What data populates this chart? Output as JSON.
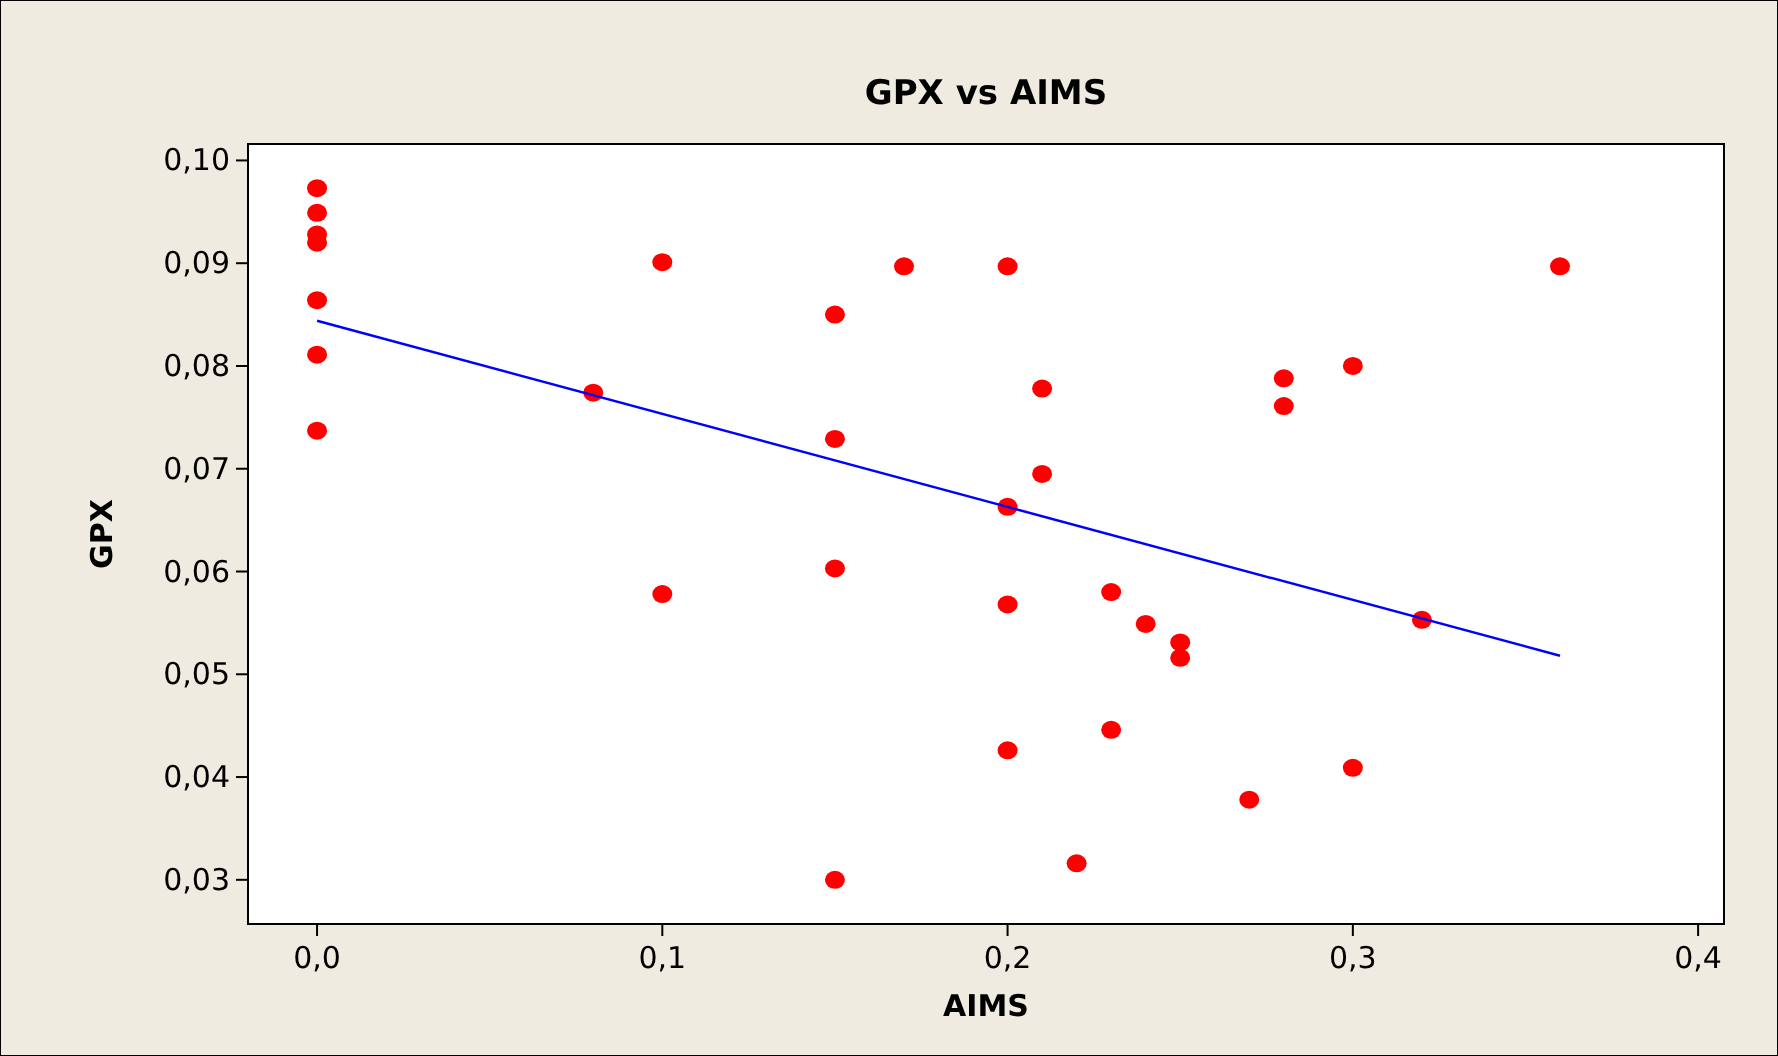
{
  "chart_data": {
    "type": "scatter",
    "title": "GPX vs AIMS",
    "xlabel": "AIMS",
    "ylabel": "GPX",
    "xlim": [
      -0.02,
      0.4075
    ],
    "ylim": [
      0.0257,
      0.1016
    ],
    "xticks": [
      {
        "value": 0,
        "label": "0,0"
      },
      {
        "value": 0.1,
        "label": "0,1"
      },
      {
        "value": 0.2,
        "label": "0,2"
      },
      {
        "value": 0.3,
        "label": "0,3"
      },
      {
        "value": 0.4,
        "label": "0,4"
      }
    ],
    "yticks": [
      {
        "value": 0.03,
        "label": "0,03"
      },
      {
        "value": 0.04,
        "label": "0,04"
      },
      {
        "value": 0.05,
        "label": "0,05"
      },
      {
        "value": 0.06,
        "label": "0,06"
      },
      {
        "value": 0.07,
        "label": "0,07"
      },
      {
        "value": 0.08,
        "label": "0,08"
      },
      {
        "value": 0.09,
        "label": "0,09"
      },
      {
        "value": 0.1,
        "label": "0,10"
      }
    ],
    "grid": false,
    "series": [
      {
        "marker": "circle",
        "color": "#ff0000",
        "x": [
          0,
          0,
          0,
          0,
          0,
          0,
          0,
          0.08,
          0.1,
          0.1,
          0.15,
          0.15,
          0.15,
          0.15,
          0.17,
          0.2,
          0.2,
          0.2,
          0.2,
          0.21,
          0.21,
          0.22,
          0.23,
          0.23,
          0.24,
          0.25,
          0.25,
          0.27,
          0.28,
          0.28,
          0.3,
          0.3,
          0.32,
          0.36
        ],
        "values": [
          0.0973,
          0.0949,
          0.0928,
          0.092,
          0.0864,
          0.0811,
          0.0737,
          0.0774,
          0.0901,
          0.0578,
          0.085,
          0.0729,
          0.0603,
          0.03,
          0.0897,
          0.0897,
          0.0663,
          0.0568,
          0.0426,
          0.0778,
          0.0695,
          0.0316,
          0.058,
          0.0446,
          0.0549,
          0.0531,
          0.0516,
          0.0378,
          0.0788,
          0.0761,
          0.08,
          0.0409,
          0.0553,
          0.0897
        ]
      },
      {
        "type": "line",
        "color": "#0000ff",
        "x": [
          0,
          0.36
        ],
        "values": [
          0.0844,
          0.0518
        ]
      }
    ]
  }
}
